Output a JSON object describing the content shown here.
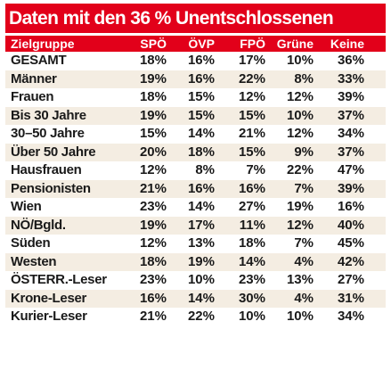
{
  "chart_data": {
    "type": "table",
    "title": "Daten mit den 36 % Unentschlossenen",
    "columns": [
      "Zielgruppe",
      "SPÖ",
      "ÖVP",
      "FPÖ",
      "Grüne",
      "Keine"
    ],
    "rows": [
      [
        "GESAMT",
        "18%",
        "16%",
        "17%",
        "10%",
        "36%"
      ],
      [
        "Männer",
        "19%",
        "16%",
        "22%",
        "8%",
        "33%"
      ],
      [
        "Frauen",
        "18%",
        "15%",
        "12%",
        "12%",
        "39%"
      ],
      [
        "Bis 30 Jahre",
        "19%",
        "15%",
        "15%",
        "10%",
        "37%"
      ],
      [
        "30–50 Jahre",
        "15%",
        "14%",
        "21%",
        "12%",
        "34%"
      ],
      [
        "Über 50 Jahre",
        "20%",
        "18%",
        "15%",
        "9%",
        "37%"
      ],
      [
        "Hausfrauen",
        "12%",
        "8%",
        "7%",
        "22%",
        "47%"
      ],
      [
        "Pensionisten",
        "21%",
        "16%",
        "16%",
        "7%",
        "39%"
      ],
      [
        "Wien",
        "23%",
        "14%",
        "27%",
        "19%",
        "16%"
      ],
      [
        "NÖ/Bgld.",
        "19%",
        "17%",
        "11%",
        "12%",
        "40%"
      ],
      [
        "Süden",
        "12%",
        "13%",
        "18%",
        "7%",
        "45%"
      ],
      [
        "Westen",
        "18%",
        "19%",
        "14%",
        "4%",
        "42%"
      ],
      [
        "ÖSTERR.-Leser",
        "23%",
        "10%",
        "23%",
        "13%",
        "27%"
      ],
      [
        "Krone-Leser",
        "16%",
        "14%",
        "30%",
        "4%",
        "31%"
      ],
      [
        "Kurier-Leser",
        "21%",
        "22%",
        "10%",
        "10%",
        "34%"
      ]
    ]
  },
  "colors": {
    "title_background": "#e2001a",
    "header_background": "#e2001a",
    "alt_row_background": "#f4ede2",
    "text": "#1a1a1a"
  }
}
